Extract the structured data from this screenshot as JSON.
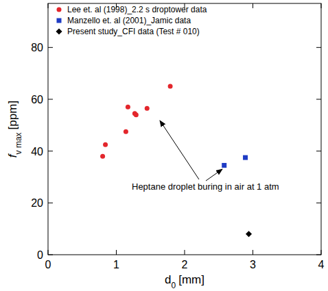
{
  "chart_data": {
    "type": "scatter",
    "x_label": {
      "main": "d",
      "sub": "0",
      "unit": "[mm]"
    },
    "y_label": {
      "main": "f",
      "sub": "v max",
      "unit": "[ppm]"
    },
    "xlim": [
      0,
      4
    ],
    "xticks": [
      0,
      1,
      2,
      3,
      4
    ],
    "ylim": [
      0,
      97
    ],
    "yticks": [
      0,
      20,
      40,
      60,
      80
    ],
    "grid": false,
    "legend": "top-left",
    "annotations": [
      "Heptane droplet buring in air at 1 atm"
    ],
    "series": [
      {
        "name": "Lee et. al (1998)_2.2 s droptower data",
        "color": "#e3262c",
        "marker": "circle",
        "x": [
          0.8,
          0.84,
          1.14,
          1.17,
          1.27,
          1.29,
          1.45,
          1.79
        ],
        "values": [
          38,
          42.5,
          47.5,
          57,
          54.5,
          54,
          56.5,
          65
        ]
      },
      {
        "name": "Manzello et. al (2001)_Jamic data",
        "color": "#1f3cc4",
        "marker": "square",
        "x": [
          2.58,
          2.89
        ],
        "values": [
          34.5,
          37.5
        ]
      },
      {
        "name": "Present study_CFI data (Test # 010)",
        "color": "#000000",
        "marker": "diamond",
        "x": [
          2.94
        ],
        "values": [
          8
        ]
      }
    ]
  }
}
